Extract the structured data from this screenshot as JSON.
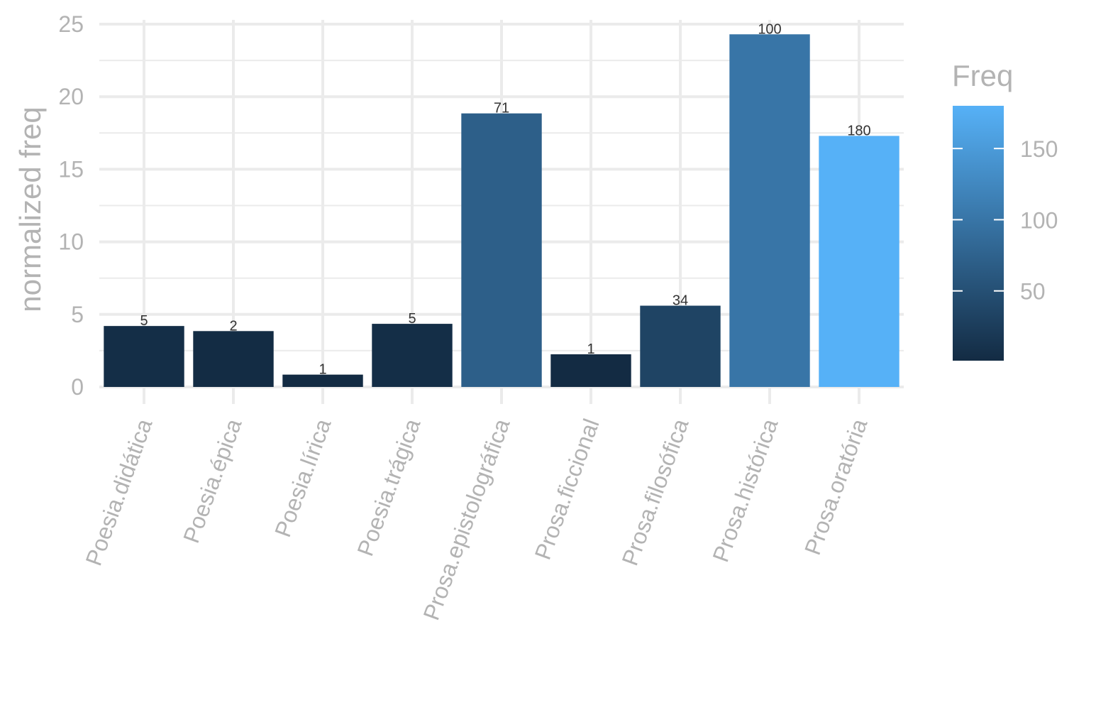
{
  "chart_data": {
    "type": "bar",
    "categories": [
      "Poesia.didática",
      "Poesia.épica",
      "Poesia.lírica",
      "Poesia.trágica",
      "Prosa.epistolográfica",
      "Prosa.ficcional",
      "Prosa.filosófica",
      "Prosa.histórica",
      "Prosa.oratória"
    ],
    "values": [
      4.2,
      3.85,
      0.85,
      4.35,
      18.85,
      2.25,
      5.6,
      24.3,
      17.3
    ],
    "freq": [
      5,
      2,
      1,
      5,
      71,
      1,
      34,
      100,
      180
    ],
    "data_labels": [
      "5",
      "2",
      "1",
      "5",
      "71",
      "1",
      "34",
      "100",
      "180"
    ],
    "ylabel": "normalized freq",
    "ylim": [
      0,
      25
    ],
    "yticks": [
      0,
      5,
      10,
      15,
      20,
      25
    ],
    "ytick_labels": [
      "0",
      "5",
      "10",
      "15",
      "20",
      "25"
    ],
    "grid": true,
    "legend": {
      "title": "Freq",
      "position": "right",
      "type": "colorbar",
      "range": [
        1,
        180
      ],
      "ticks": [
        50,
        100,
        150
      ],
      "tick_labels": [
        "50",
        "100",
        "150"
      ],
      "colors": {
        "low": "#132B43",
        "high": "#56B1F7"
      }
    }
  }
}
